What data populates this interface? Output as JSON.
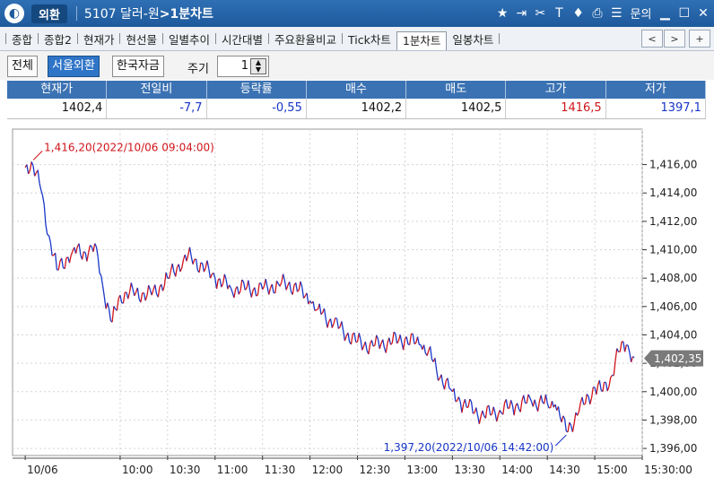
{
  "titlebar": {
    "app_name": "외환",
    "code": "5107",
    "instrument": "달러-원",
    "view": "1분차트",
    "inquiry_label": "문의",
    "icons": [
      "star-icon",
      "export-icon",
      "link-icon",
      "font-icon",
      "shield-icon",
      "print-icon",
      "list-icon",
      "minimize-icon",
      "maximize-icon",
      "close-icon"
    ]
  },
  "tabs": [
    "종합",
    "종합2",
    "현재가",
    "현선물",
    "일별추이",
    "시간대별",
    "주요환율비교",
    "Tick차트",
    "1분차트",
    "일봉차트"
  ],
  "active_tab": "1분차트",
  "filter": {
    "buttons": [
      "전체",
      "서울외환",
      "한국자금"
    ],
    "active": "서울외환",
    "period_label": "주기",
    "period_value": "1"
  },
  "quote": {
    "headers": [
      "현재가",
      "전일비",
      "등락률",
      "매수",
      "매도",
      "고가",
      "저가"
    ],
    "values": [
      "1402,4",
      "-7,7",
      "-0,55",
      "1402,2",
      "1402,5",
      "1416,5",
      "1397,1"
    ]
  },
  "chart_data": {
    "type": "line",
    "xlabels": [
      "10/06",
      "10:00",
      "10:30",
      "11:00",
      "11:30",
      "12:00",
      "12:30",
      "13:00",
      "13:30",
      "14:00",
      "14:30",
      "15:00",
      "15:30:00"
    ],
    "ylabels": [
      "1,416,00",
      "1,414,00",
      "1,412,00",
      "1,410,00",
      "1,408,00",
      "1,406,00",
      "1,404,00",
      "1,402,00",
      "1,400,00",
      "1,398,00",
      "1,396,00"
    ],
    "ylim": [
      1395.5,
      1418.5
    ],
    "current_value_label": "1,402,35",
    "current_value": 1402.35,
    "annotations": {
      "high": "1,416,20(2022/10/06 09:04:00)",
      "low": "1,397,20(2022/10/06 14:42:00)"
    },
    "series": [
      {
        "x": [
          "09:00",
          "09:04",
          "09:10",
          "09:15",
          "09:20",
          "09:30",
          "09:40",
          "09:45",
          "09:50",
          "09:55",
          "10:00",
          "10:10",
          "10:20",
          "10:30",
          "10:40",
          "10:45",
          "11:00",
          "11:10",
          "11:20",
          "11:30",
          "11:40",
          "11:50",
          "12:00",
          "12:05",
          "12:15",
          "12:30",
          "12:40",
          "12:45",
          "13:00",
          "13:10",
          "13:15",
          "13:20",
          "13:30",
          "13:35",
          "13:40",
          "13:50",
          "14:00",
          "14:10",
          "14:20",
          "14:30",
          "14:35",
          "14:42",
          "14:50",
          "15:00",
          "15:05",
          "15:10",
          "15:15",
          "15:20",
          "15:25"
        ],
        "y": [
          1415.8,
          1416.2,
          1414.2,
          1411.0,
          1408.6,
          1409.9,
          1409.8,
          1410.2,
          1406.7,
          1404.9,
          1406.8,
          1407.0,
          1406.8,
          1408.0,
          1409.3,
          1409.5,
          1408.0,
          1407.3,
          1407.3,
          1407.2,
          1407.6,
          1407.5,
          1406.4,
          1405.8,
          1404.8,
          1403.5,
          1403.2,
          1403.4,
          1403.7,
          1403.3,
          1402.9,
          1401.5,
          1400.0,
          1399.3,
          1398.9,
          1398.3,
          1398.7,
          1399.0,
          1399.3,
          1399.2,
          1399.1,
          1397.2,
          1398.6,
          1400.3,
          1400.0,
          1401.0,
          1402.8,
          1403.3,
          1402.4
        ]
      }
    ]
  }
}
